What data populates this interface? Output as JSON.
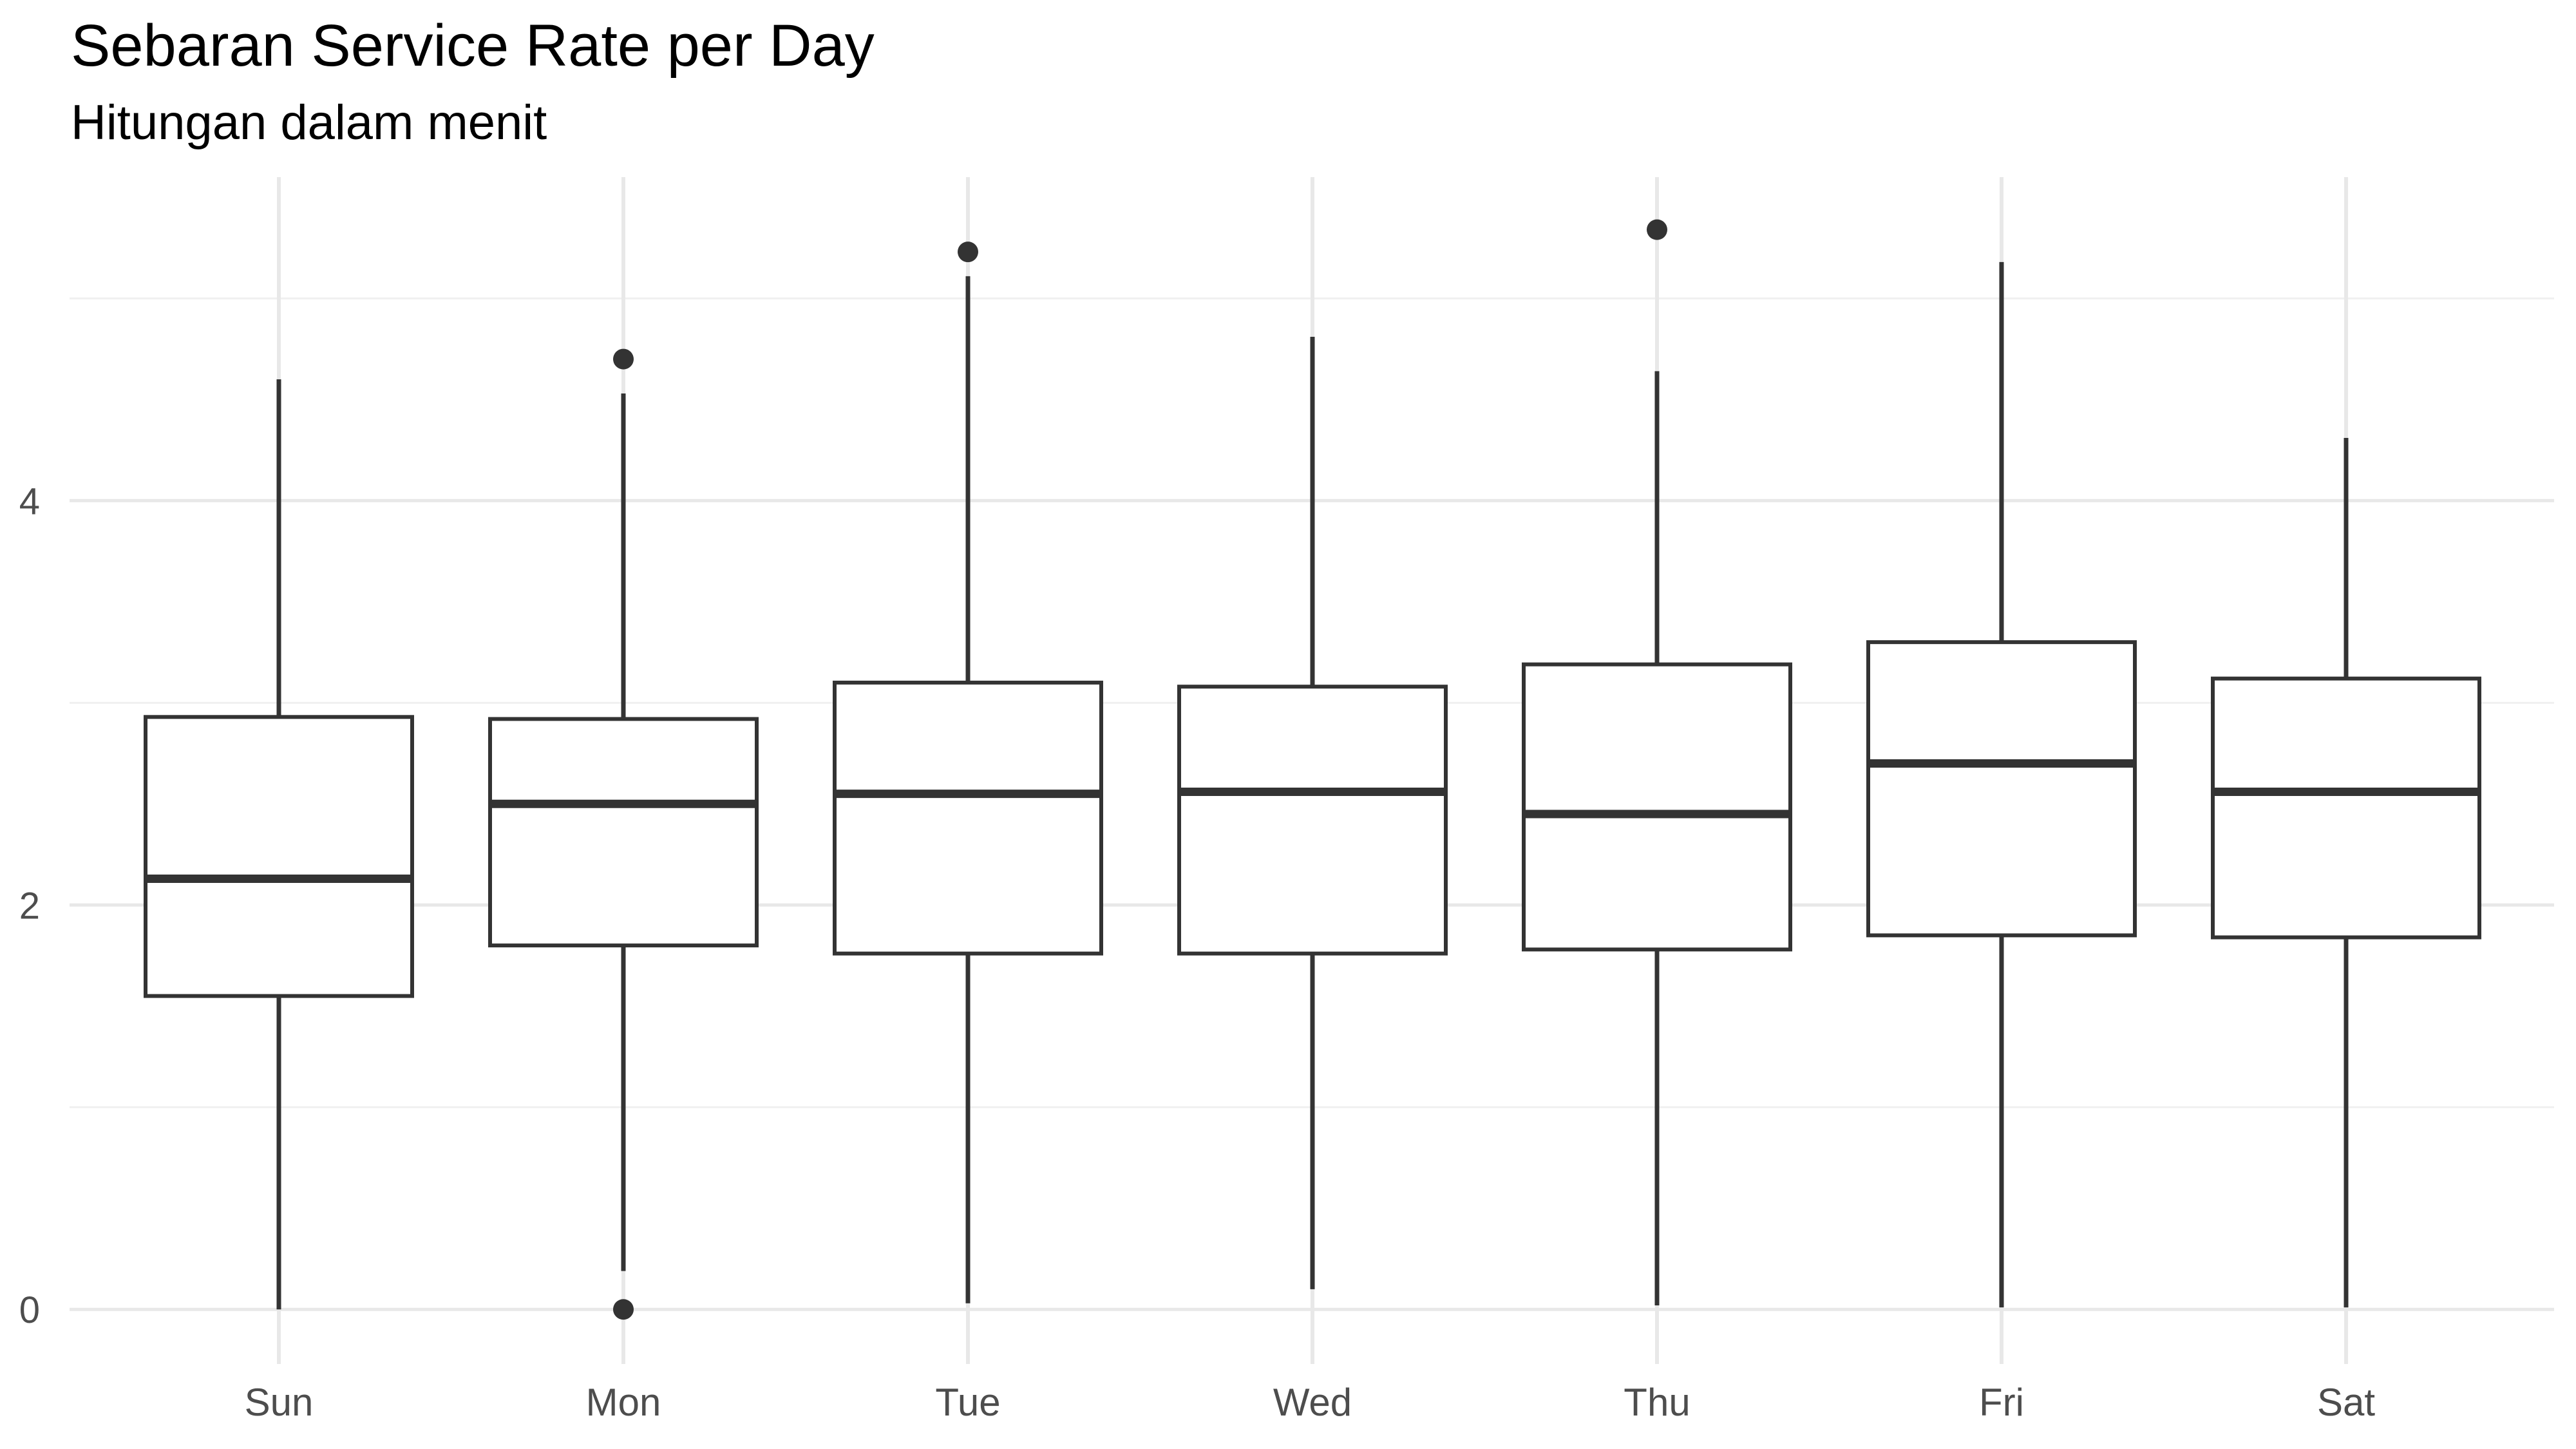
{
  "title": "Sebaran Service Rate per Day",
  "subtitle": "Hitungan dalam menit",
  "chart_data": {
    "type": "boxplot",
    "title": "Sebaran Service Rate per Day",
    "subtitle": "Hitungan dalam menit",
    "xlabel": "",
    "ylabel": "",
    "categories": [
      "Sun",
      "Mon",
      "Tue",
      "Wed",
      "Thu",
      "Fri",
      "Sat"
    ],
    "boxes": [
      {
        "label": "Sun",
        "min": 0.0,
        "q1": 1.55,
        "median": 2.13,
        "q3": 2.93,
        "max": 4.6,
        "outliers": []
      },
      {
        "label": "Mon",
        "min": 0.19,
        "q1": 1.8,
        "median": 2.5,
        "q3": 2.92,
        "max": 4.53,
        "outliers": [
          4.7,
          0.0
        ]
      },
      {
        "label": "Tue",
        "min": 0.03,
        "q1": 1.76,
        "median": 2.55,
        "q3": 3.1,
        "max": 5.11,
        "outliers": [
          5.23
        ]
      },
      {
        "label": "Wed",
        "min": 0.1,
        "q1": 1.76,
        "median": 2.56,
        "q3": 3.08,
        "max": 4.81,
        "outliers": []
      },
      {
        "label": "Thu",
        "min": 0.02,
        "q1": 1.78,
        "median": 2.45,
        "q3": 3.19,
        "max": 4.64,
        "outliers": [
          5.34
        ]
      },
      {
        "label": "Fri",
        "min": 0.01,
        "q1": 1.85,
        "median": 2.7,
        "q3": 3.3,
        "max": 5.18,
        "outliers": []
      },
      {
        "label": "Sat",
        "min": 0.01,
        "q1": 1.84,
        "median": 2.56,
        "q3": 3.12,
        "max": 4.31,
        "outliers": []
      }
    ],
    "y_ticks": [
      {
        "value": 0,
        "label": "0"
      },
      {
        "value": 2,
        "label": "2"
      },
      {
        "value": 4,
        "label": "4"
      }
    ],
    "y_minor_gridlines": [
      1,
      3,
      5
    ],
    "ylim": [
      -0.27,
      5.6
    ],
    "grid": true,
    "legend": false
  },
  "colors": {
    "background": "#ffffff",
    "box_stroke": "#333333",
    "box_fill": "#ffffff",
    "median_stroke": "#333333",
    "outlier_fill": "#333333",
    "grid_major": "#e8e8e8",
    "grid_minor": "#f0f0f0",
    "axis_text": "#4d4d4d",
    "title_text": "#000000"
  }
}
